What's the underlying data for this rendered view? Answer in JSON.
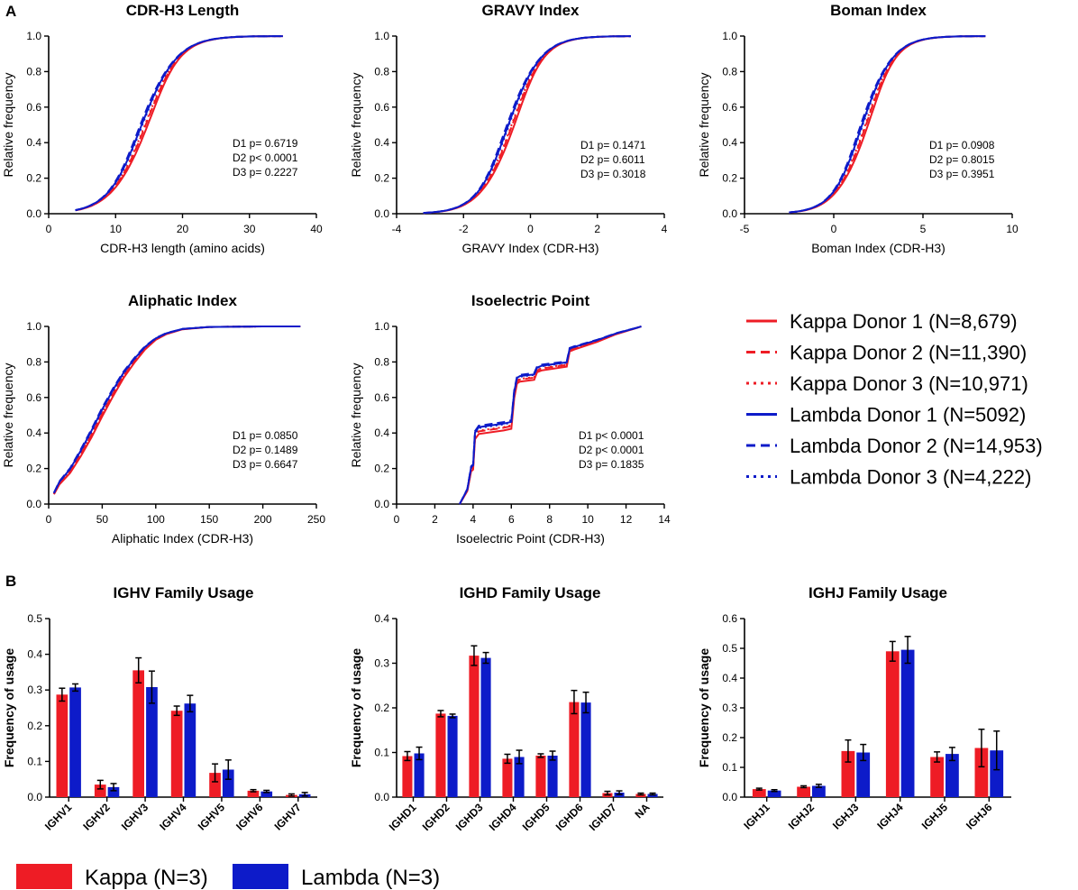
{
  "panels": {
    "a": "A",
    "b": "B"
  },
  "colors": {
    "kappa": "#ee1c25",
    "lambda": "#0d1bc9"
  },
  "chart_data": [
    {
      "type": "line",
      "id": "cdr",
      "title": "CDR-H3 Length",
      "xlabel": "CDR-H3 length (amino acids)",
      "ylabel": "Relative frequency",
      "xlim": [
        0,
        40
      ],
      "ylim": [
        0,
        1
      ],
      "xticks": [
        "0",
        "10",
        "20",
        "30",
        "40"
      ],
      "yticks": [
        "0.0",
        "0.2",
        "0.4",
        "0.6",
        "0.8",
        "1.0"
      ],
      "stats": [
        "D1 p= 0.6719",
        "D2 p< 0.0001",
        "D3 p= 0.2227"
      ],
      "curve": {
        "kind": "logistic",
        "mu": 14.2,
        "s": 2.6,
        "start": 4,
        "end": 35
      }
    },
    {
      "type": "line",
      "id": "gravy",
      "title": "GRAVY Index",
      "xlabel": "GRAVY Index (CDR-H3)",
      "ylabel": "Relative frequency",
      "xlim": [
        -4,
        4
      ],
      "ylim": [
        0,
        1
      ],
      "xticks": [
        "-4",
        "-2",
        "0",
        "2",
        "4"
      ],
      "yticks": [
        "0.0",
        "0.2",
        "0.4",
        "0.6",
        "0.8",
        "1.0"
      ],
      "stats": [
        "D1 p= 0.1471",
        "D2 p= 0.6011",
        "D3 p= 0.3018"
      ],
      "curve": {
        "kind": "logistic",
        "mu": -0.6,
        "s": 0.48,
        "start": -3.2,
        "end": 3.0
      }
    },
    {
      "type": "line",
      "id": "boman",
      "title": "Boman Index",
      "xlabel": "Boman Index (CDR-H3)",
      "ylabel": "Relative frequency",
      "xlim": [
        -5,
        10
      ],
      "ylim": [
        0,
        1
      ],
      "xticks": [
        "-5",
        "0",
        "5",
        "10"
      ],
      "yticks": [
        "0.0",
        "0.2",
        "0.4",
        "0.6",
        "0.8",
        "1.0"
      ],
      "stats": [
        "D1 p= 0.0908",
        "D2 p= 0.8015",
        "D3 p= 0.3951"
      ],
      "curve": {
        "kind": "logistic",
        "mu": 1.7,
        "s": 0.85,
        "start": -2.5,
        "end": 8.5
      }
    },
    {
      "type": "line",
      "id": "aliphatic",
      "title": "Aliphatic Index",
      "xlabel": "Aliphatic Index (CDR-H3)",
      "ylabel": "Relative frequency",
      "xlim": [
        0,
        250
      ],
      "ylim": [
        0,
        1
      ],
      "xticks": [
        "0",
        "50",
        "100",
        "150",
        "200",
        "250"
      ],
      "yticks": [
        "0.0",
        "0.2",
        "0.4",
        "0.6",
        "0.8",
        "1.0"
      ],
      "stats": [
        "D1 p= 0.0850",
        "D2 p= 0.1489",
        "D3 p= 0.6647"
      ],
      "curve": {
        "kind": "points",
        "x": [
          5,
          10,
          20,
          30,
          40,
          50,
          60,
          70,
          80,
          90,
          100,
          110,
          125,
          150,
          200,
          235
        ],
        "y": [
          0.06,
          0.12,
          0.19,
          0.29,
          0.4,
          0.52,
          0.63,
          0.73,
          0.81,
          0.88,
          0.93,
          0.96,
          0.985,
          0.997,
          1.0,
          1.0
        ]
      }
    },
    {
      "type": "line",
      "id": "pi",
      "title": "Isoelectric Point",
      "xlabel": "Isoelectric Point (CDR-H3)",
      "ylabel": "Relative frequency",
      "xlim": [
        0,
        14
      ],
      "ylim": [
        0,
        1
      ],
      "xticks": [
        "0",
        "2",
        "4",
        "6",
        "8",
        "10",
        "12",
        "14"
      ],
      "yticks": [
        "0.0",
        "0.2",
        "0.4",
        "0.6",
        "0.8",
        "1.0"
      ],
      "stats": [
        "D1 p< 0.0001",
        "D2 p< 0.0001",
        "D3 p= 0.1835"
      ],
      "curve": {
        "kind": "points",
        "x": [
          3.3,
          3.7,
          3.9,
          4.0,
          4.1,
          4.3,
          5.6,
          6.0,
          6.15,
          6.3,
          6.45,
          7.2,
          7.35,
          7.6,
          8.9,
          9.05,
          9.3,
          10.5,
          11.5,
          12.5,
          12.8
        ],
        "y": [
          0.0,
          0.08,
          0.2,
          0.21,
          0.39,
          0.42,
          0.44,
          0.45,
          0.62,
          0.7,
          0.71,
          0.72,
          0.76,
          0.77,
          0.79,
          0.87,
          0.88,
          0.92,
          0.96,
          0.99,
          1.0
        ]
      }
    },
    {
      "type": "bar",
      "id": "ighv",
      "title": "IGHV Family Usage",
      "ylabel": "Frequency of usage",
      "ylim": [
        0,
        0.5
      ],
      "yticks": [
        "0.0",
        "0.1",
        "0.2",
        "0.3",
        "0.4",
        "0.5"
      ],
      "categories": [
        "IGHV1",
        "IGHV2",
        "IGHV3",
        "IGHV4",
        "IGHV5",
        "IGHV6",
        "IGHV7"
      ],
      "series": [
        {
          "name": "Kappa",
          "values": [
            0.287,
            0.035,
            0.355,
            0.242,
            0.068,
            0.018,
            0.006
          ],
          "errors": [
            0.018,
            0.012,
            0.035,
            0.013,
            0.025,
            0.003,
            0.003
          ]
        },
        {
          "name": "Lambda",
          "values": [
            0.307,
            0.028,
            0.308,
            0.262,
            0.077,
            0.016,
            0.008
          ],
          "errors": [
            0.01,
            0.01,
            0.045,
            0.023,
            0.027,
            0.003,
            0.005
          ]
        }
      ]
    },
    {
      "type": "bar",
      "id": "ighd",
      "title": "IGHD Family Usage",
      "ylabel": "Frequency of usage",
      "ylim": [
        0,
        0.4
      ],
      "yticks": [
        "0.0",
        "0.1",
        "0.2",
        "0.3",
        "0.4"
      ],
      "categories": [
        "IGHD1",
        "IGHD2",
        "IGHD3",
        "IGHD4",
        "IGHD5",
        "IGHD6",
        "IGHD7",
        "NA"
      ],
      "series": [
        {
          "name": "Kappa",
          "values": [
            0.092,
            0.187,
            0.317,
            0.086,
            0.093,
            0.213,
            0.009,
            0.007
          ],
          "errors": [
            0.01,
            0.007,
            0.022,
            0.01,
            0.004,
            0.026,
            0.004,
            0.002
          ]
        },
        {
          "name": "Lambda",
          "values": [
            0.098,
            0.182,
            0.312,
            0.09,
            0.093,
            0.212,
            0.01,
            0.007
          ],
          "errors": [
            0.014,
            0.004,
            0.012,
            0.015,
            0.01,
            0.023,
            0.004,
            0.002
          ]
        }
      ]
    },
    {
      "type": "bar",
      "id": "ighj",
      "title": "IGHJ Family Usage",
      "ylabel": "Frequency of usage",
      "ylim": [
        0,
        0.6
      ],
      "yticks": [
        "0.0",
        "0.1",
        "0.2",
        "0.3",
        "0.4",
        "0.5",
        "0.6"
      ],
      "categories": [
        "IGHJ1",
        "IGHJ2",
        "IGHJ3",
        "IGHJ4",
        "IGHJ5",
        "IGHJ6"
      ],
      "series": [
        {
          "name": "Kappa",
          "values": [
            0.027,
            0.035,
            0.155,
            0.49,
            0.135,
            0.165
          ],
          "errors": [
            0.003,
            0.003,
            0.037,
            0.033,
            0.017,
            0.063
          ]
        },
        {
          "name": "Lambda",
          "values": [
            0.022,
            0.038,
            0.15,
            0.495,
            0.145,
            0.157
          ],
          "errors": [
            0.003,
            0.005,
            0.027,
            0.045,
            0.022,
            0.065
          ]
        }
      ]
    }
  ],
  "legend_lines": [
    {
      "label": "Kappa Donor 1 (N=8,679)",
      "color": "kappa",
      "dash": "solid"
    },
    {
      "label": "Kappa Donor 2 (N=11,390)",
      "color": "kappa",
      "dash": "dashed"
    },
    {
      "label": "Kappa Donor 3 (N=10,971)",
      "color": "kappa",
      "dash": "dotted"
    },
    {
      "label": "Lambda Donor 1 (N=5092)",
      "color": "lambda",
      "dash": "solid"
    },
    {
      "label": "Lambda Donor 2 (N=14,953)",
      "color": "lambda",
      "dash": "dashed"
    },
    {
      "label": "Lambda Donor 3 (N=4,222)",
      "color": "lambda",
      "dash": "dotted"
    }
  ],
  "legend_bars": [
    {
      "label": "Kappa (N=3)",
      "color": "kappa"
    },
    {
      "label": "Lambda (N=3)",
      "color": "lambda"
    }
  ]
}
